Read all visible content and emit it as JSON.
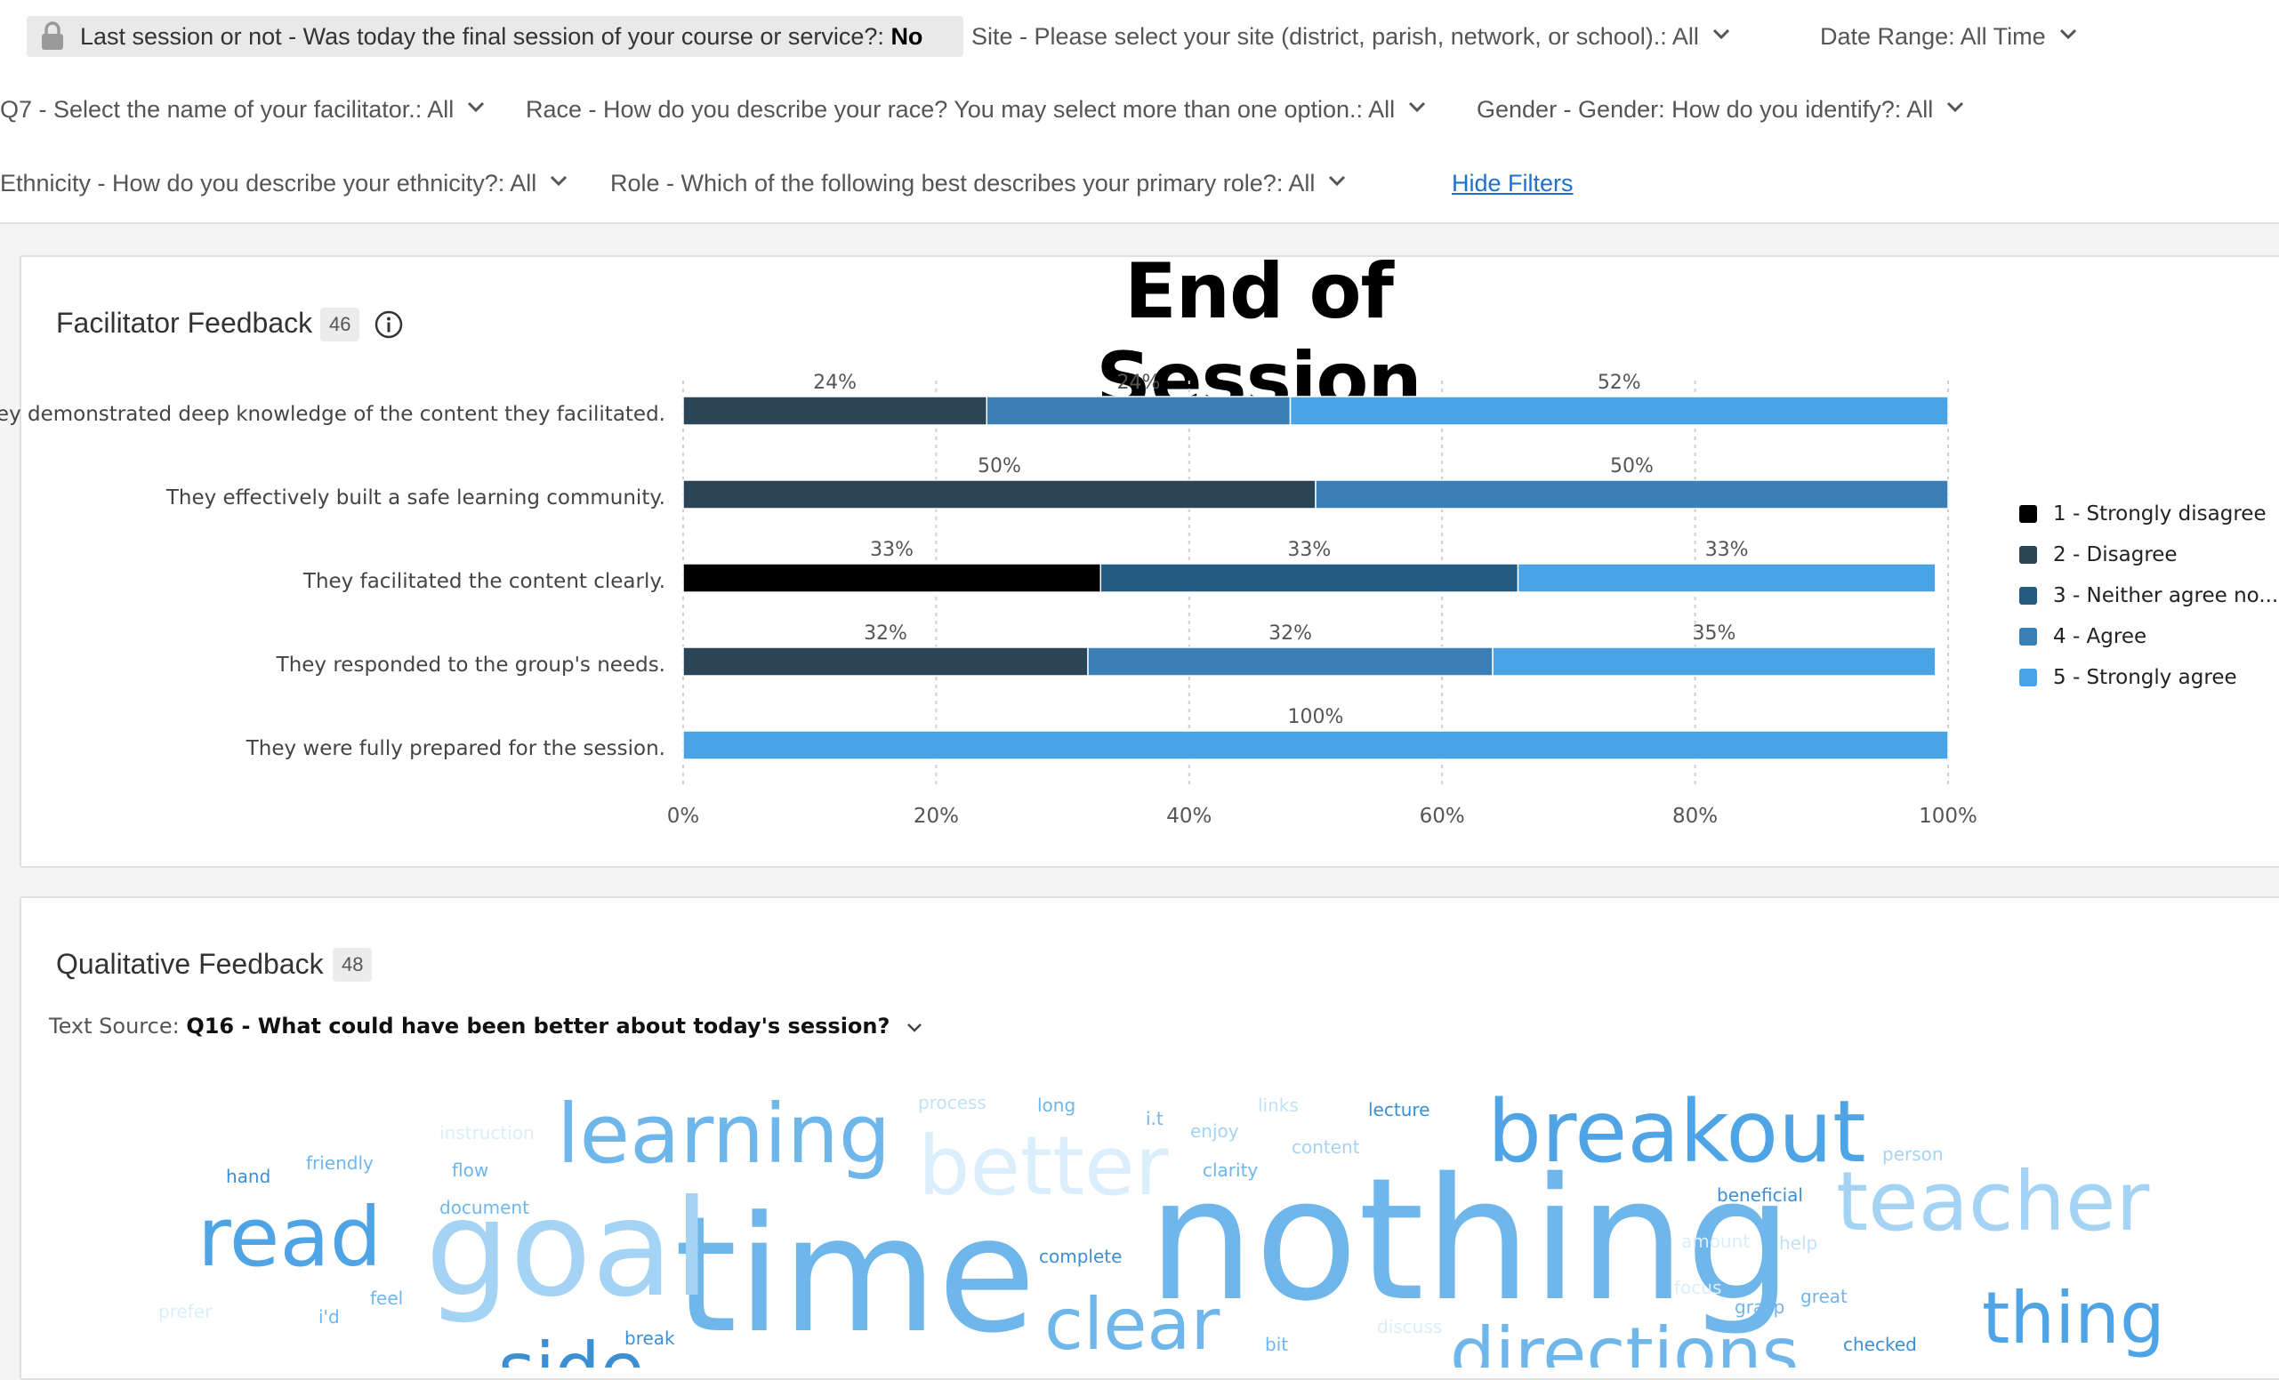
{
  "filters": {
    "last_session": {
      "label": "Last session or not - Was today the final session of your course or service?:",
      "value": "No"
    },
    "site": {
      "label": "Site - Please select your site (district, parish, network, or school).:",
      "value": "All"
    },
    "date_range": {
      "label": "Date Range:",
      "value": "All Time"
    },
    "q7": {
      "label": "Q7 - Select the name of your facilitator.:",
      "value": "All"
    },
    "race": {
      "label": "Race - How do you describe your race? You may select more than one option.:",
      "value": "All"
    },
    "gender": {
      "label": "Gender - Gender: How do you identify?:",
      "value": "All"
    },
    "ethnicity": {
      "label": "Ethnicity - How do you describe your ethnicity?:",
      "value": "All"
    },
    "role": {
      "label": "Role - Which of the following best describes your primary role?:",
      "value": "All"
    },
    "hide_filters_label": "Hide Filters"
  },
  "facilitator_widget": {
    "title": "Facilitator Feedback",
    "count": "46",
    "overlay_title": "End of Session"
  },
  "chart_data": {
    "type": "bar",
    "orientation": "horizontal",
    "stacked": true,
    "categories": [
      "They demonstrated deep knowledge of the content they facilitated.",
      "They effectively built a safe learning community.",
      "They facilitated the content clearly.",
      "They responded to the group's needs.",
      "They were fully prepared for the session."
    ],
    "series": [
      {
        "name": "1 - Strongly disagree",
        "color": "#000000",
        "values": [
          0,
          0,
          33,
          0,
          0
        ]
      },
      {
        "name": "2 - Disagree",
        "color": "#2b4556",
        "values": [
          24,
          50,
          0,
          32,
          0
        ]
      },
      {
        "name": "3 - Neither agree no...",
        "color": "#235a80",
        "values": [
          0,
          0,
          33,
          0,
          0
        ]
      },
      {
        "name": "4 - Agree",
        "color": "#3a7fb6",
        "values": [
          24,
          50,
          0,
          32,
          0
        ]
      },
      {
        "name": "5 - Strongly agree",
        "color": "#4aa3e6",
        "values": [
          52,
          0,
          33,
          35,
          100
        ]
      }
    ],
    "data_labels": [
      [
        "24%",
        "24%",
        "52%"
      ],
      [
        "50%",
        "50%"
      ],
      [
        "33%",
        "33%",
        "33%"
      ],
      [
        "32%",
        "32%",
        "35%"
      ],
      [
        "100%"
      ]
    ],
    "x_ticks": [
      "0%",
      "20%",
      "40%",
      "60%",
      "80%",
      "100%"
    ],
    "xlim": [
      0,
      100
    ],
    "grid": true,
    "legend_position": "right"
  },
  "qualitative_widget": {
    "title": "Qualitative Feedback",
    "count": "48",
    "text_source_label": "Text Source:",
    "text_source_value": "Q16 - What could have been better about today's session?"
  },
  "wordcloud": [
    {
      "text": "nothing",
      "size": 190,
      "color": "#6fb6ea"
    },
    {
      "text": "time",
      "size": 180,
      "color": "#6fb6ea"
    },
    {
      "text": "goal",
      "size": 150,
      "color": "#a5d3f4"
    },
    {
      "text": "breakout",
      "size": 96,
      "color": "#4fa4e6"
    },
    {
      "text": "learning",
      "size": 92,
      "color": "#6fb6ea"
    },
    {
      "text": "read",
      "size": 92,
      "color": "#4fa4e6"
    },
    {
      "text": "better",
      "size": 92,
      "color": "#dbeefb"
    },
    {
      "text": "teacher",
      "size": 92,
      "color": "#a5d3f4"
    },
    {
      "text": "clear",
      "size": 80,
      "color": "#6fb6ea"
    },
    {
      "text": "thing",
      "size": 80,
      "color": "#4fa4e6"
    },
    {
      "text": "directions",
      "size": 80,
      "color": "#6fb6ea"
    },
    {
      "text": "process",
      "size": 20,
      "color": "#c2e2f8"
    },
    {
      "text": "long",
      "size": 20,
      "color": "#6fb6ea"
    },
    {
      "text": "i.t",
      "size": 20,
      "color": "#6fb6ea"
    },
    {
      "text": "enjoy",
      "size": 20,
      "color": "#a5d3f4"
    },
    {
      "text": "links",
      "size": 20,
      "color": "#c2e2f8"
    },
    {
      "text": "lecture",
      "size": 20,
      "color": "#3d8fd4"
    },
    {
      "text": "content",
      "size": 20,
      "color": "#a5d3f4"
    },
    {
      "text": "instruction",
      "size": 20,
      "color": "#dbeefb"
    },
    {
      "text": "friendly",
      "size": 20,
      "color": "#6fb6ea"
    },
    {
      "text": "hand",
      "size": 20,
      "color": "#3d8fd4"
    },
    {
      "text": "flow",
      "size": 20,
      "color": "#6fb6ea"
    },
    {
      "text": "document",
      "size": 20,
      "color": "#6fb6ea"
    },
    {
      "text": "clarity",
      "size": 20,
      "color": "#6fb6ea"
    },
    {
      "text": "person",
      "size": 20,
      "color": "#a5d3f4"
    },
    {
      "text": "beneficial",
      "size": 20,
      "color": "#3d8fd4"
    },
    {
      "text": "amount",
      "size": 20,
      "color": "#dbeefb"
    },
    {
      "text": "help",
      "size": 20,
      "color": "#c2e2f8"
    },
    {
      "text": "complete",
      "size": 20,
      "color": "#3d8fd4"
    },
    {
      "text": "feel",
      "size": 20,
      "color": "#6fb6ea"
    },
    {
      "text": "prefer",
      "size": 20,
      "color": "#dbeefb"
    },
    {
      "text": "i'd",
      "size": 20,
      "color": "#6fb6ea"
    },
    {
      "text": "break",
      "size": 20,
      "color": "#3d8fd4"
    },
    {
      "text": "focus",
      "size": 20,
      "color": "#dbeefb"
    },
    {
      "text": "grasp",
      "size": 20,
      "color": "#6fb6ea"
    },
    {
      "text": "great",
      "size": 20,
      "color": "#6fb6ea"
    },
    {
      "text": "discuss",
      "size": 20,
      "color": "#dbeefb"
    },
    {
      "text": "bit",
      "size": 20,
      "color": "#6fb6ea"
    },
    {
      "text": "checked",
      "size": 20,
      "color": "#3d8fd4"
    },
    {
      "text": "side",
      "size": 80,
      "color": "#3d8fd4"
    }
  ]
}
